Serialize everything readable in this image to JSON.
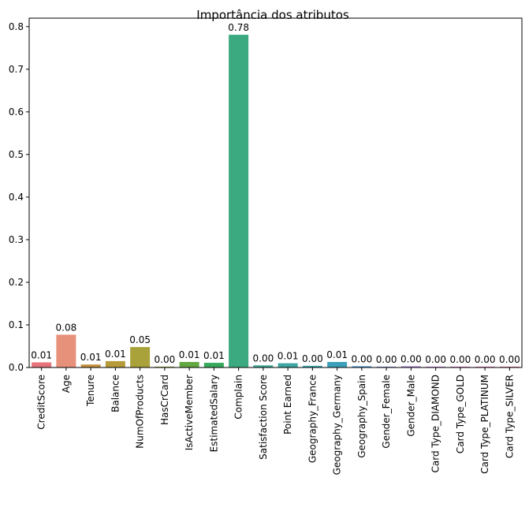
{
  "chart_data": {
    "type": "bar",
    "title": "Importância dos atributos",
    "xlabel": "",
    "ylabel": "",
    "ylim": [
      0,
      0.82
    ],
    "yticks": [
      "0.0",
      "0.1",
      "0.2",
      "0.3",
      "0.4",
      "0.5",
      "0.6",
      "0.7",
      "0.8"
    ],
    "categories": [
      "CreditScore",
      "Age",
      "Tenure",
      "Balance",
      "NumOfProducts",
      "HasCrCard",
      "IsActiveMember",
      "EstimatedSalary",
      "Complain",
      "Satisfaction Score",
      "Point Earned",
      "Geography_France",
      "Geography_Germany",
      "Geography_Spain",
      "Gender_Female",
      "Gender_Male",
      "Card Type_DIAMOND",
      "Card Type_GOLD",
      "Card Type_PLATINUM",
      "Card Type_SILVER"
    ],
    "values": [
      0.012,
      0.077,
      0.007,
      0.015,
      0.048,
      0.002,
      0.013,
      0.011,
      0.781,
      0.005,
      0.01,
      0.004,
      0.013,
      0.003,
      0.002,
      0.003,
      0.002,
      0.002,
      0.002,
      0.002
    ],
    "data_labels": [
      "0.01",
      "0.08",
      "0.01",
      "0.01",
      "0.05",
      "0.00",
      "0.01",
      "0.01",
      "0.78",
      "0.00",
      "0.01",
      "0.00",
      "0.01",
      "0.00",
      "0.00",
      "0.00",
      "0.00",
      "0.00",
      "0.00",
      "0.00"
    ],
    "colors": [
      "#e8727b",
      "#e8917a",
      "#c58f3d",
      "#b69b3b",
      "#a9a23a",
      "#8da638",
      "#63a942",
      "#36aa5c",
      "#3baa80",
      "#3ba795",
      "#3ea5a2",
      "#3ea3ae",
      "#3ca0ba",
      "#4c9ad3",
      "#8a96dd",
      "#ae8ad8",
      "#c77ed8",
      "#dc74c9",
      "#e575b5",
      "#e87497"
    ],
    "grid": false,
    "legend": "none"
  }
}
